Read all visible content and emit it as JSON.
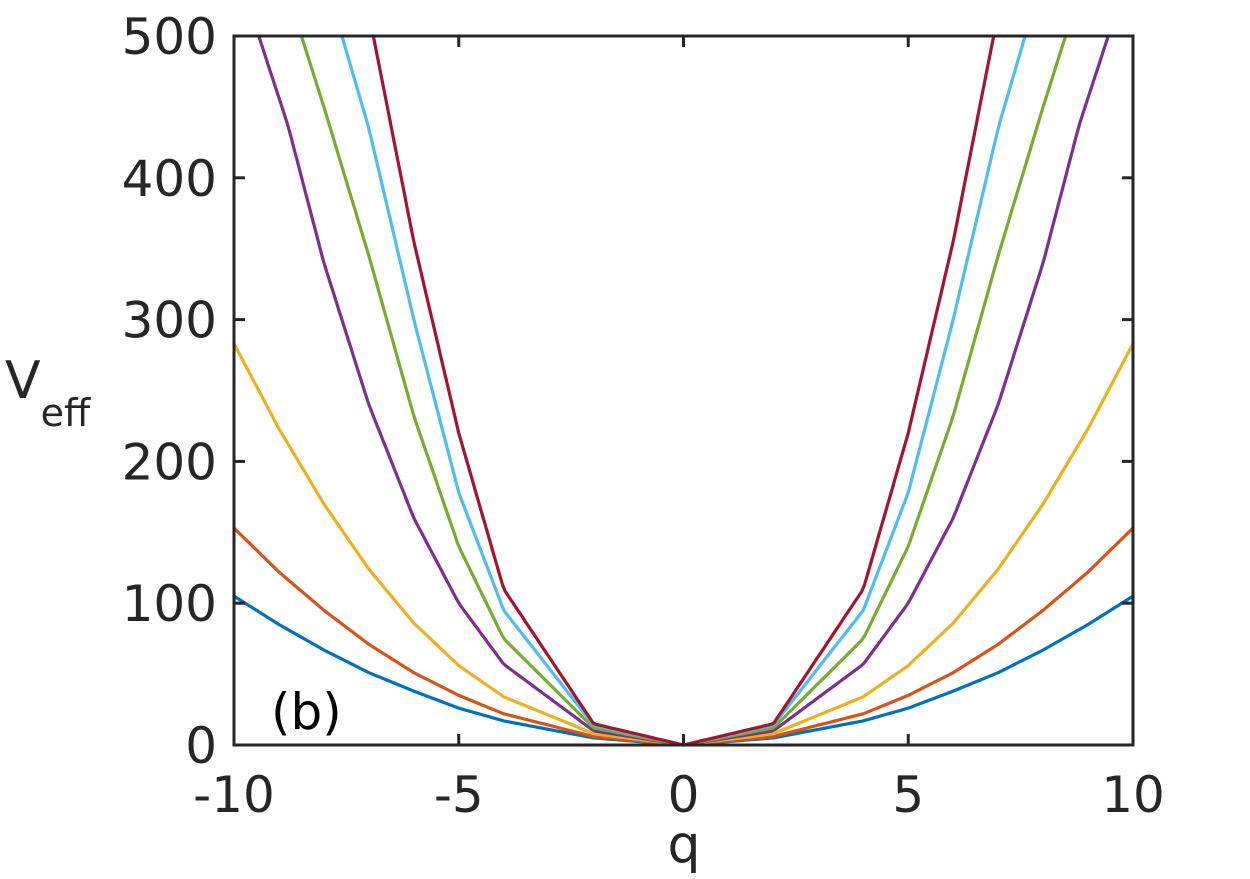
{
  "chart_data": {
    "type": "line",
    "panel_label": "(b)",
    "xlabel": "q",
    "ylabel": {
      "main": "V",
      "sub": "eff"
    },
    "xlim": [
      -10,
      10
    ],
    "ylim": [
      0,
      500
    ],
    "xticks": [
      -10,
      -5,
      0,
      5,
      10
    ],
    "yticks": [
      0,
      100,
      200,
      300,
      400,
      500
    ],
    "grid": false,
    "box": true,
    "series": [
      {
        "color": "#0072BD",
        "values": [
          {
            "x": 0,
            "y": 0
          },
          {
            "x": 2,
            "y": 5
          },
          {
            "x": 4,
            "y": 17
          },
          {
            "x": 5,
            "y": 26
          },
          {
            "x": 6,
            "y": 38
          },
          {
            "x": 7,
            "y": 51
          },
          {
            "x": 8,
            "y": 67
          },
          {
            "x": 9,
            "y": 85
          },
          {
            "x": 10,
            "y": 105
          }
        ]
      },
      {
        "color": "#D95319",
        "values": [
          {
            "x": 0,
            "y": 0
          },
          {
            "x": 2,
            "y": 6
          },
          {
            "x": 4,
            "y": 22
          },
          {
            "x": 5,
            "y": 35
          },
          {
            "x": 6,
            "y": 51
          },
          {
            "x": 7,
            "y": 71
          },
          {
            "x": 8,
            "y": 95
          },
          {
            "x": 9,
            "y": 122
          },
          {
            "x": 10,
            "y": 153
          }
        ]
      },
      {
        "color": "#EDB120",
        "values": [
          {
            "x": 0,
            "y": 0
          },
          {
            "x": 2,
            "y": 8
          },
          {
            "x": 4,
            "y": 34
          },
          {
            "x": 5,
            "y": 56
          },
          {
            "x": 6,
            "y": 86
          },
          {
            "x": 7,
            "y": 124
          },
          {
            "x": 8,
            "y": 170
          },
          {
            "x": 9,
            "y": 223
          },
          {
            "x": 10,
            "y": 283
          }
        ]
      },
      {
        "color": "#7E2F8E",
        "values": [
          {
            "x": 0,
            "y": 0
          },
          {
            "x": 2,
            "y": 10
          },
          {
            "x": 4,
            "y": 57
          },
          {
            "x": 5,
            "y": 100
          },
          {
            "x": 6,
            "y": 160
          },
          {
            "x": 7,
            "y": 240
          },
          {
            "x": 8,
            "y": 340
          },
          {
            "x": 8.8,
            "y": 437
          },
          {
            "x": 9.45,
            "y": 500
          }
        ]
      },
      {
        "color": "#77AC30",
        "values": [
          {
            "x": 0,
            "y": 0
          },
          {
            "x": 2,
            "y": 12
          },
          {
            "x": 4,
            "y": 75
          },
          {
            "x": 5,
            "y": 140
          },
          {
            "x": 6,
            "y": 232
          },
          {
            "x": 7,
            "y": 345
          },
          {
            "x": 8,
            "y": 450
          },
          {
            "x": 8.5,
            "y": 500
          }
        ]
      },
      {
        "color": "#4DBEEE",
        "values": [
          {
            "x": 0,
            "y": 0
          },
          {
            "x": 2,
            "y": 14
          },
          {
            "x": 4,
            "y": 95
          },
          {
            "x": 5,
            "y": 178
          },
          {
            "x": 6,
            "y": 300
          },
          {
            "x": 7,
            "y": 435
          },
          {
            "x": 7.6,
            "y": 500
          }
        ]
      },
      {
        "color": "#A2142F",
        "values": [
          {
            "x": 0,
            "y": 0
          },
          {
            "x": 2,
            "y": 15
          },
          {
            "x": 4,
            "y": 110
          },
          {
            "x": 5,
            "y": 220
          },
          {
            "x": 6,
            "y": 355
          },
          {
            "x": 6.9,
            "y": 500
          }
        ]
      }
    ]
  }
}
